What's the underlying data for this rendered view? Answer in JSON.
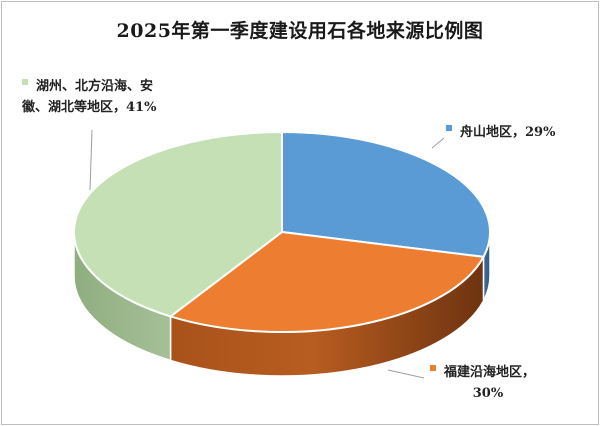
{
  "chart_data": {
    "type": "pie",
    "style": "3d",
    "title": "2025年第一季度建设用石各地来源比例图",
    "slices": [
      {
        "label": "舟山地区",
        "value": 29,
        "value_label": "29%",
        "color": "#5b9bd5"
      },
      {
        "label": "福建沿海地区",
        "value": 30,
        "value_label": "30%",
        "color": "#ed7d31"
      },
      {
        "label": "湖州、北方沿海、安徽、湖北等地区",
        "value": 41,
        "value_label": "41%",
        "color": "#c5e0b4"
      }
    ],
    "labels": {
      "green_line1": "湖州、北方沿海、安",
      "green_line2": "徽、湖北等地区，41%",
      "blue": "舟山地区，29%",
      "orange_line1": "福建沿海地区，",
      "orange_line2": "30%"
    }
  }
}
